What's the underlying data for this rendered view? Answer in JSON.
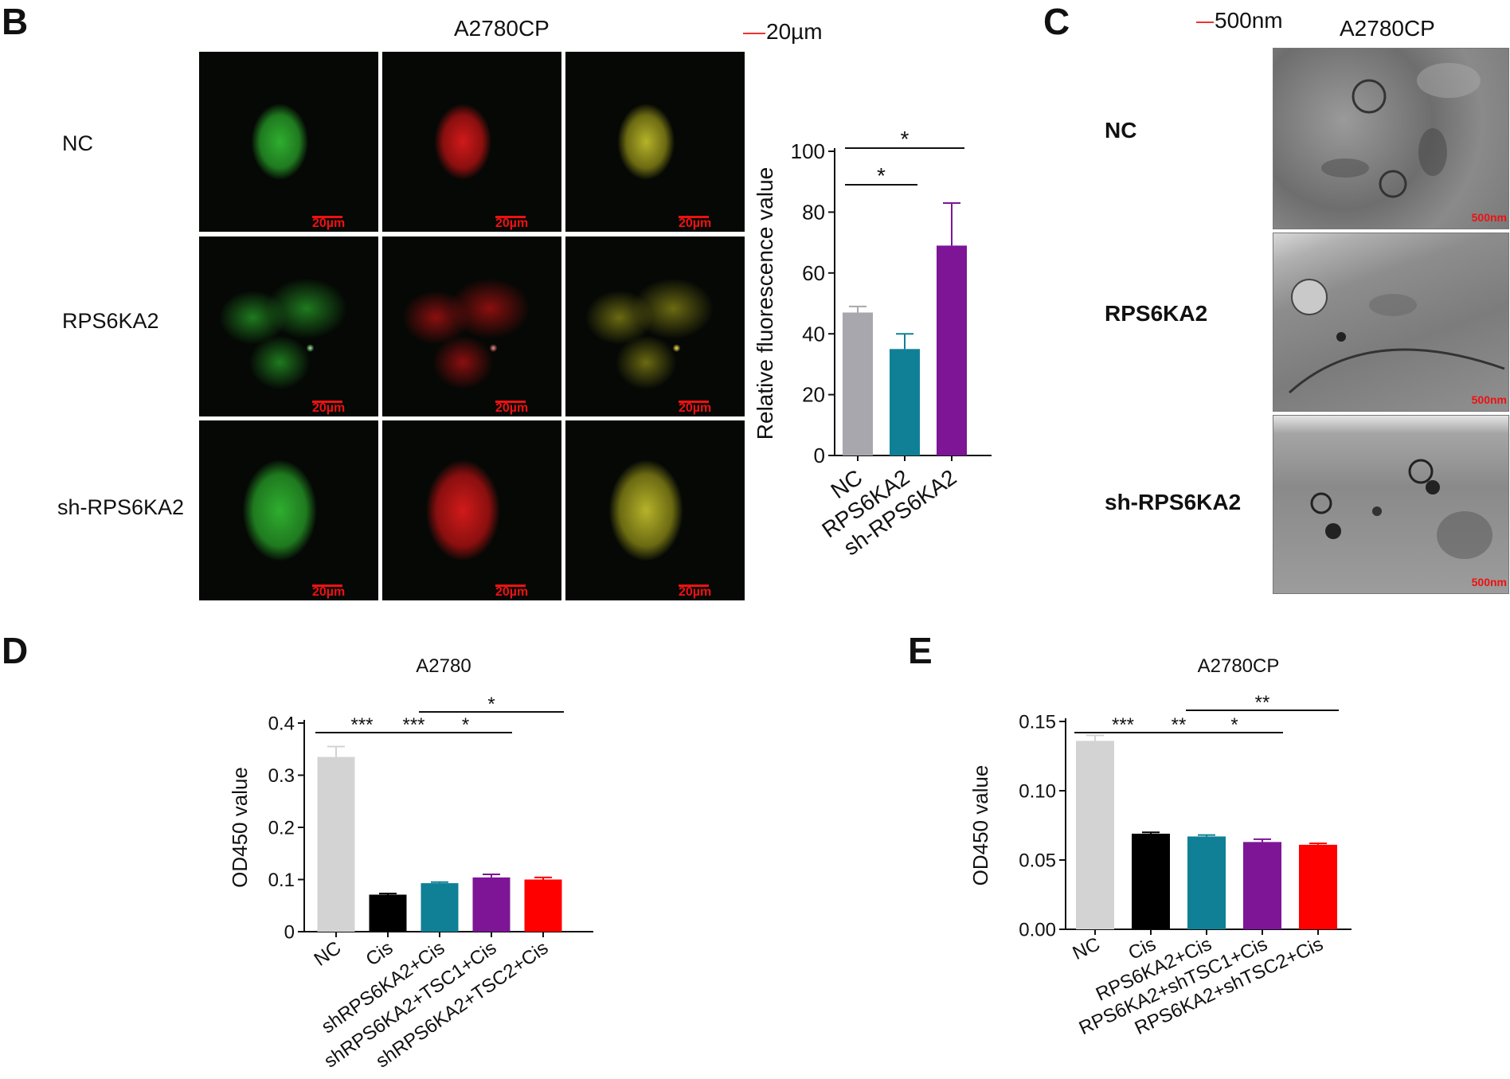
{
  "panels": {
    "B": {
      "letter": "B",
      "title": "A2780CP",
      "scale_label": "20µm",
      "rows": [
        "NC",
        "RPS6KA2",
        "sh-RPS6KA2"
      ],
      "tile_scale": "20µm",
      "channels": [
        "green",
        "red",
        "merge"
      ]
    },
    "C": {
      "letter": "C",
      "title": "A2780CP",
      "scale_label": "500nm",
      "rows": [
        "NC",
        "RPS6KA2",
        "sh-RPS6KA2"
      ],
      "tile_scale": "500nm"
    },
    "D": {
      "letter": "D"
    },
    "E": {
      "letter": "E"
    }
  },
  "chart_data": [
    {
      "id": "B-bar",
      "type": "bar",
      "title": "",
      "ylabel": "Relative fluorescence value",
      "categories": [
        "NC",
        "RPS6KA2",
        "sh-RPS6KA2"
      ],
      "values": [
        47,
        35,
        69
      ],
      "errors": [
        2,
        5,
        14
      ],
      "colors": [
        "#a7a7ad",
        "#0f8095",
        "#7d1596"
      ],
      "ylim": [
        0,
        100
      ],
      "yticks": [
        "0",
        "20",
        "40",
        "60",
        "80",
        "100"
      ],
      "significance": [
        {
          "from": 0,
          "to": 1,
          "label": "*"
        },
        {
          "from": 0,
          "to": 2,
          "label": "*"
        }
      ]
    },
    {
      "id": "D-bar",
      "type": "bar",
      "title": "A2780",
      "ylabel": "OD450 value",
      "categories": [
        "NC",
        "Cis",
        "shRPS6KA2+Cis",
        "shRPS6KA2+TSC1+Cis",
        "shRPS6KA2+TSC2+Cis"
      ],
      "values": [
        0.335,
        0.071,
        0.093,
        0.104,
        0.1
      ],
      "errors": [
        0.02,
        0.002,
        0.002,
        0.006,
        0.004
      ],
      "colors": [
        "#d3d3d3",
        "#000000",
        "#0f8095",
        "#7d1596",
        "#ff0000"
      ],
      "ylim": [
        0,
        0.4
      ],
      "yticks": [
        "0",
        "0.1",
        "0.2",
        "0.3",
        "0.4"
      ],
      "significance": [
        {
          "from": 0,
          "to": 1,
          "label": "***"
        },
        {
          "from": 1,
          "to": 2,
          "label": "***"
        },
        {
          "from": 2,
          "to": 3,
          "label": "*"
        },
        {
          "from": 2,
          "to": 4,
          "label": "*"
        }
      ]
    },
    {
      "id": "E-bar",
      "type": "bar",
      "title": "A2780CP",
      "ylabel": "OD450 value",
      "categories": [
        "NC",
        "Cis",
        "RPS6KA2+Cis",
        "RPS6KA2+shTSC1+Cis",
        "RPS6KA2+shTSC2+Cis"
      ],
      "values": [
        0.136,
        0.069,
        0.067,
        0.063,
        0.061
      ],
      "errors": [
        0.004,
        0.001,
        0.001,
        0.002,
        0.001
      ],
      "colors": [
        "#d3d3d3",
        "#000000",
        "#0f8095",
        "#7d1596",
        "#ff0000"
      ],
      "ylim": [
        0,
        0.15
      ],
      "yticks": [
        "0.00",
        "0.05",
        "0.10",
        "0.15"
      ],
      "significance": [
        {
          "from": 0,
          "to": 1,
          "label": "***"
        },
        {
          "from": 1,
          "to": 2,
          "label": "**"
        },
        {
          "from": 2,
          "to": 3,
          "label": "*"
        },
        {
          "from": 2,
          "to": 4,
          "label": "**"
        }
      ]
    }
  ]
}
